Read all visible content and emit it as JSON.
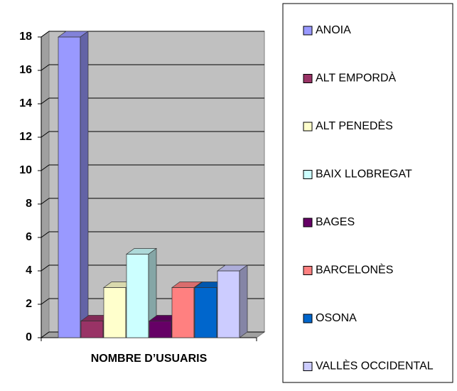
{
  "chart_data": {
    "type": "bar",
    "categories": [
      "NOMBRE D’USUARIS"
    ],
    "series": [
      {
        "name": "ANOIA",
        "color": "#9999ff",
        "values": [
          18
        ]
      },
      {
        "name": "ALT EMPORDÀ",
        "color": "#993366",
        "values": [
          1
        ]
      },
      {
        "name": "ALT PENEDÈS",
        "color": "#ffffcc",
        "values": [
          3
        ]
      },
      {
        "name": "BAIX LLOBREGAT",
        "color": "#ccffff",
        "values": [
          5
        ]
      },
      {
        "name": "BAGES",
        "color": "#660066",
        "values": [
          1
        ]
      },
      {
        "name": "BARCELONÈS",
        "color": "#ff8080",
        "values": [
          3
        ]
      },
      {
        "name": "OSONA",
        "color": "#0066cc",
        "values": [
          3
        ]
      },
      {
        "name": "VALLÈS OCCIDENTAL",
        "color": "#ccccff",
        "values": [
          4
        ]
      }
    ],
    "ylim": [
      0,
      18
    ],
    "yticks": [
      0,
      2,
      4,
      6,
      8,
      10,
      12,
      14,
      16,
      18
    ],
    "grid": true,
    "legend": "right"
  }
}
